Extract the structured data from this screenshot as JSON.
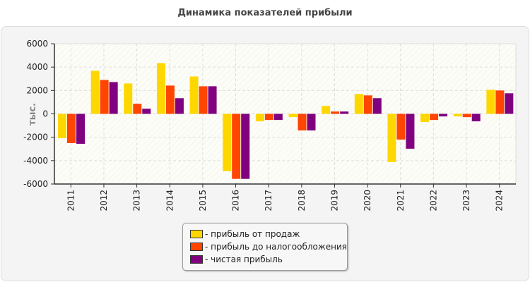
{
  "chart_data": {
    "type": "bar",
    "title": "Динамика показателей прибыли",
    "ylabel": "тыс.",
    "xlabel": "",
    "ylim": [
      -6000,
      6000
    ],
    "yticks": [
      6000,
      4000,
      2000,
      0,
      -2000,
      -4000,
      -6000
    ],
    "grid": true,
    "legend_position": "bottom",
    "categories": [
      "2011",
      "2012",
      "2013",
      "2014",
      "2015",
      "2016",
      "2017",
      "2018",
      "2019",
      "2020",
      "2021",
      "2022",
      "2023",
      "2024"
    ],
    "series": [
      {
        "name": "- прибыль от продаж",
        "color": "#ffd700",
        "values": [
          -2080,
          3680,
          2600,
          4340,
          3200,
          -4900,
          -640,
          -280,
          680,
          1700,
          -4120,
          -700,
          -220,
          2060
        ]
      },
      {
        "name": "- прибыль до налогообложения",
        "color": "#ff4500",
        "values": [
          -2500,
          2900,
          860,
          2420,
          2360,
          -5560,
          -520,
          -1420,
          200,
          1580,
          -2200,
          -520,
          -280,
          2000
        ]
      },
      {
        "name": "- чистая прибыль",
        "color": "#800080",
        "values": [
          -2560,
          2720,
          440,
          1340,
          2360,
          -5560,
          -520,
          -1420,
          200,
          1340,
          -2980,
          -220,
          -640,
          1760
        ]
      }
    ]
  }
}
